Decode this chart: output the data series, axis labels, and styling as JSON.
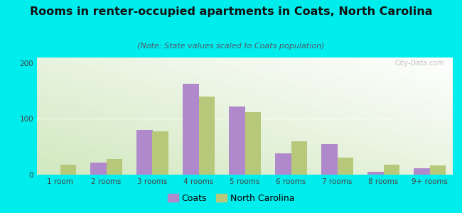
{
  "title": "Rooms in renter-occupied apartments in Coats, North Carolina",
  "subtitle": "(Note: State values scaled to Coats population)",
  "categories": [
    "1 room",
    "2 rooms",
    "3 rooms",
    "4 rooms",
    "5 rooms",
    "6 rooms",
    "7 rooms",
    "8 rooms",
    "9+ rooms"
  ],
  "coats_values": [
    0,
    22,
    80,
    163,
    122,
    38,
    55,
    5,
    12
  ],
  "nc_values": [
    18,
    28,
    78,
    140,
    112,
    60,
    30,
    18,
    16
  ],
  "coats_color": "#b088cc",
  "nc_color": "#b8c87a",
  "ylim": [
    0,
    210
  ],
  "yticks": [
    0,
    100,
    200
  ],
  "bg_color": "#00eded",
  "bar_width": 0.35,
  "title_fontsize": 11.5,
  "subtitle_fontsize": 8,
  "tick_fontsize": 7.5,
  "legend_fontsize": 9,
  "watermark_text": "City-Data.com"
}
